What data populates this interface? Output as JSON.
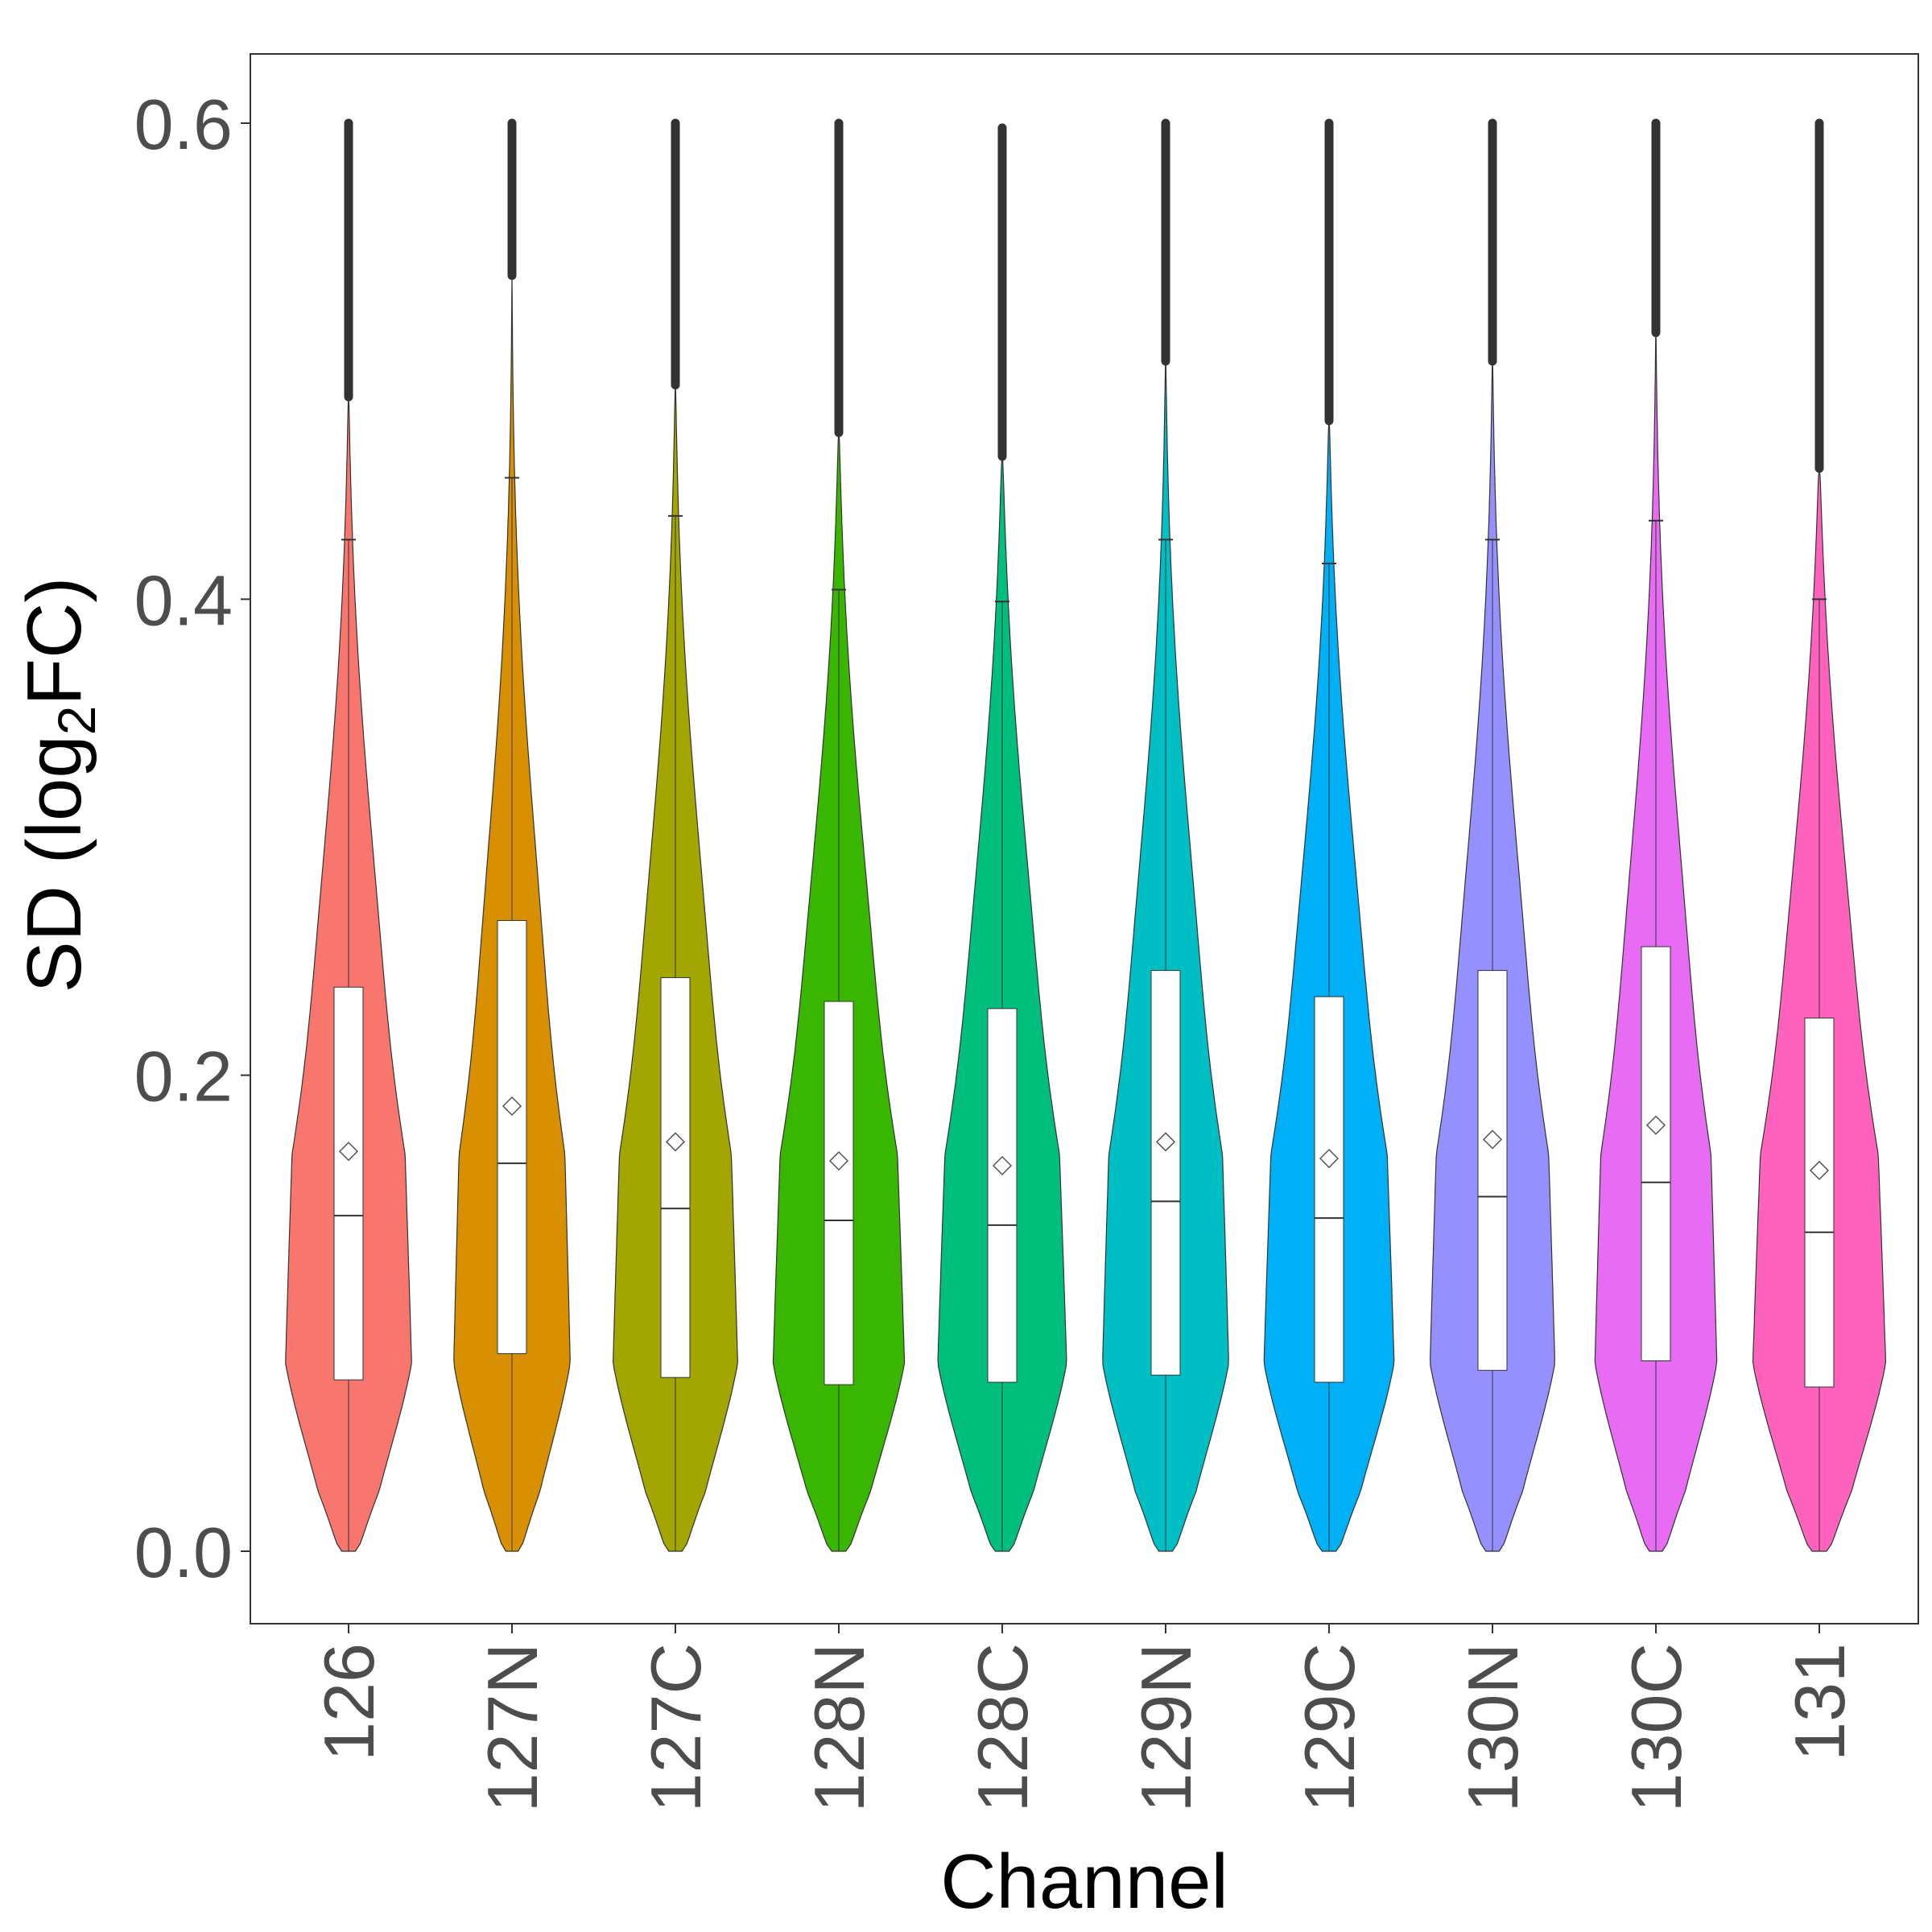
{
  "chart_data": {
    "type": "violin",
    "xlabel": "Channel",
    "ylabel": {
      "prefix": "SD (log",
      "subscript": "2",
      "suffix": "FC)"
    },
    "ylim": [
      -0.025,
      0.63
    ],
    "yticks": [
      0.0,
      0.2,
      0.4,
      0.6
    ],
    "ytick_labels": [
      "0.0",
      "0.2",
      "0.4",
      "0.6"
    ],
    "grid": false,
    "legend": "none",
    "categories": [
      "126",
      "127N",
      "127C",
      "128N",
      "128C",
      "129N",
      "129C",
      "130N",
      "130C",
      "131"
    ],
    "series": [
      {
        "category": "126",
        "color": "#F8766D",
        "q1": 0.072,
        "median": 0.141,
        "q3": 0.237,
        "mean": 0.168,
        "whisker_high": 0.425,
        "violin_top": 0.485,
        "outlier_max": 0.6,
        "max_half_width": 0.92
      },
      {
        "category": "127N",
        "color": "#D89000",
        "q1": 0.083,
        "median": 0.163,
        "q3": 0.265,
        "mean": 0.187,
        "whisker_high": 0.451,
        "violin_top": 0.536,
        "outlier_max": 0.6,
        "max_half_width": 0.85
      },
      {
        "category": "127C",
        "color": "#A3A500",
        "q1": 0.073,
        "median": 0.144,
        "q3": 0.241,
        "mean": 0.172,
        "whisker_high": 0.435,
        "violin_top": 0.49,
        "outlier_max": 0.6,
        "max_half_width": 0.91
      },
      {
        "category": "128N",
        "color": "#39B600",
        "q1": 0.07,
        "median": 0.139,
        "q3": 0.231,
        "mean": 0.164,
        "whisker_high": 0.404,
        "violin_top": 0.47,
        "outlier_max": 0.6,
        "max_half_width": 0.96
      },
      {
        "category": "128C",
        "color": "#00BF7D",
        "q1": 0.071,
        "median": 0.137,
        "q3": 0.228,
        "mean": 0.162,
        "whisker_high": 0.399,
        "violin_top": 0.46,
        "outlier_max": 0.598,
        "max_half_width": 0.94
      },
      {
        "category": "129N",
        "color": "#00BFC4",
        "q1": 0.074,
        "median": 0.147,
        "q3": 0.244,
        "mean": 0.172,
        "whisker_high": 0.425,
        "violin_top": 0.5,
        "outlier_max": 0.6,
        "max_half_width": 0.92
      },
      {
        "category": "129C",
        "color": "#00B0F6",
        "q1": 0.071,
        "median": 0.14,
        "q3": 0.233,
        "mean": 0.165,
        "whisker_high": 0.415,
        "violin_top": 0.475,
        "outlier_max": 0.6,
        "max_half_width": 0.95
      },
      {
        "category": "130N",
        "color": "#9590FF",
        "q1": 0.076,
        "median": 0.149,
        "q3": 0.244,
        "mean": 0.173,
        "whisker_high": 0.425,
        "violin_top": 0.5,
        "outlier_max": 0.6,
        "max_half_width": 0.91
      },
      {
        "category": "130C",
        "color": "#E76BF3",
        "q1": 0.08,
        "median": 0.155,
        "q3": 0.254,
        "mean": 0.179,
        "whisker_high": 0.433,
        "violin_top": 0.512,
        "outlier_max": 0.6,
        "max_half_width": 0.89
      },
      {
        "category": "131",
        "color": "#FF62BC",
        "q1": 0.069,
        "median": 0.134,
        "q3": 0.224,
        "mean": 0.16,
        "whisker_high": 0.4,
        "violin_top": 0.455,
        "outlier_max": 0.6,
        "max_half_width": 0.97
      }
    ]
  }
}
